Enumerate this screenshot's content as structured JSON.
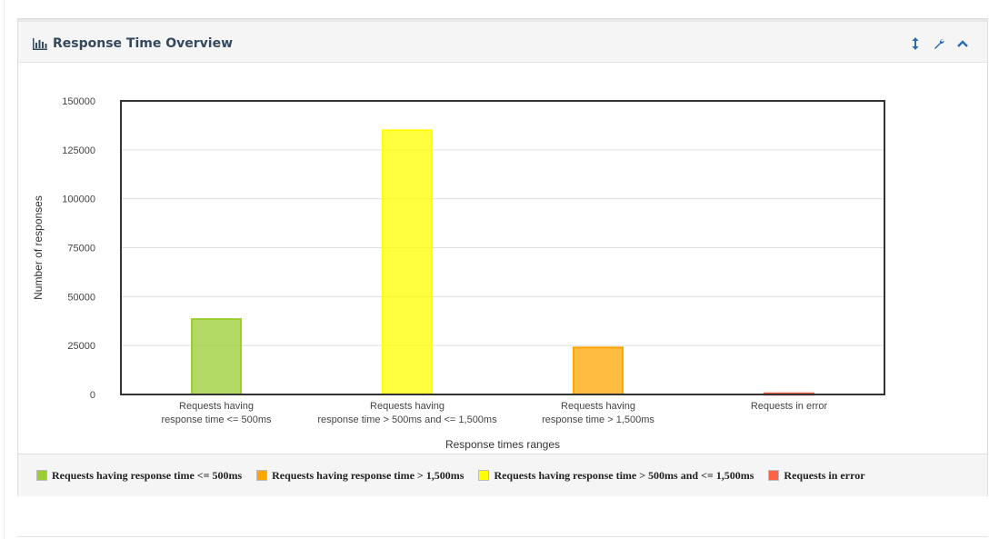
{
  "panel": {
    "title": "Response Time Overview",
    "title_icon": "bar-chart-icon",
    "tools": [
      {
        "name": "resize-vertical-icon"
      },
      {
        "name": "wrench-icon"
      },
      {
        "name": "chevron-up-icon"
      }
    ]
  },
  "chart_data": {
    "type": "bar",
    "categories": [
      [
        "Requests having",
        "response time <= 500ms"
      ],
      [
        "Requests having",
        "response time > 500ms and <= 1,500ms"
      ],
      [
        "Requests having",
        "response time > 1,500ms"
      ],
      [
        "Requests in error"
      ]
    ],
    "values": [
      38500,
      135000,
      24000,
      600
    ],
    "colors": [
      "#9acd32",
      "#ffff00",
      "#ffa500",
      "#ff6347"
    ],
    "xlabel": "Response times ranges",
    "ylabel": "Number of responses",
    "ylim": [
      0,
      150000
    ],
    "yticks": [
      0,
      25000,
      50000,
      75000,
      100000,
      125000,
      150000
    ],
    "grid": true,
    "legend": [
      {
        "label": "Requests having response time <= 500ms",
        "color": "#9acd32"
      },
      {
        "label": "Requests having response time > 1,500ms",
        "color": "#ffa500"
      },
      {
        "label": "Requests having response time > 500ms and <= 1,500ms",
        "color": "#ffff00"
      },
      {
        "label": "Requests in error",
        "color": "#ff6347"
      }
    ],
    "legend_position": "bottom"
  }
}
